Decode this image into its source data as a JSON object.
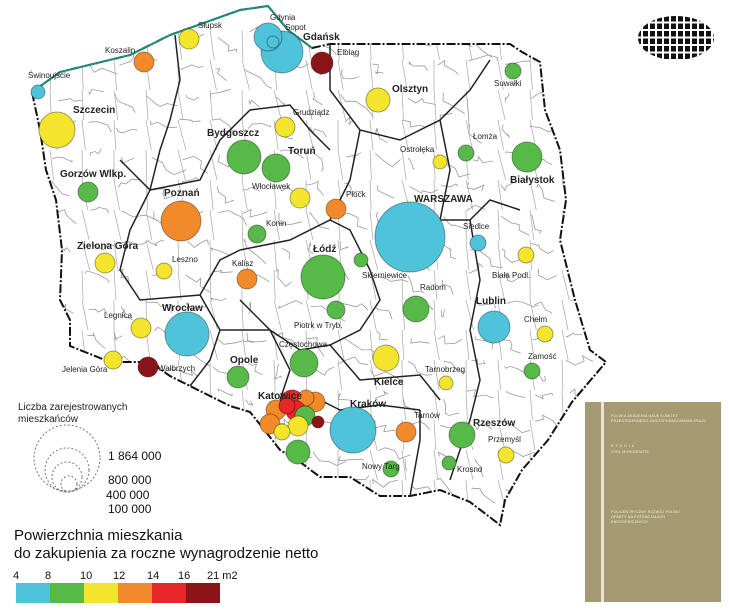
{
  "colors": {
    "bin_4_8": "#4fc3d9",
    "bin_8_10": "#56b948",
    "bin_10_12": "#f2e52c",
    "bin_12_14": "#f08a2a",
    "bin_14_16": "#e8262a",
    "bin_16_21": "#8b1418"
  },
  "cities": [
    {
      "name": "Gdynia",
      "bin": "bin_4_8"
    },
    {
      "name": "Sopot",
      "bin": "bin_4_8"
    },
    {
      "name": "Gdańsk",
      "bin": "bin_4_8"
    },
    {
      "name": "Elbląg",
      "bin": "bin_16_21"
    },
    {
      "name": "Słupsk",
      "bin": "bin_10_12"
    },
    {
      "name": "Koszalin",
      "bin": "bin_12_14"
    },
    {
      "name": "Świnoujście",
      "bin": "bin_4_8"
    },
    {
      "name": "Szczecin",
      "bin": "bin_10_12"
    },
    {
      "name": "Grudziądz",
      "bin": "bin_10_12"
    },
    {
      "name": "Bydgoszcz",
      "bin": "bin_8_10"
    },
    {
      "name": "Toruń",
      "bin": "bin_8_10"
    },
    {
      "name": "Włocławek",
      "bin": "bin_10_12"
    },
    {
      "name": "Płock",
      "bin": "bin_12_14"
    },
    {
      "name": "Gorzów Wlkp.",
      "bin": "bin_8_10"
    },
    {
      "name": "Poznań",
      "bin": "bin_12_14"
    },
    {
      "name": "Olsztyn",
      "bin": "bin_10_12"
    },
    {
      "name": "Suwałki",
      "bin": "bin_8_10"
    },
    {
      "name": "Łomża",
      "bin": "bin_8_10"
    },
    {
      "name": "Ostrołęka",
      "bin": "bin_10_12"
    },
    {
      "name": "Białystok",
      "bin": "bin_8_10"
    },
    {
      "name": "WARSZAWA",
      "bin": "bin_4_8"
    },
    {
      "name": "Siedlce",
      "bin": "bin_4_8"
    },
    {
      "name": "Biała Podl.",
      "bin": "bin_10_12"
    },
    {
      "name": "Konin",
      "bin": "bin_8_10"
    },
    {
      "name": "Łódź",
      "bin": "bin_8_10"
    },
    {
      "name": "Skierniewice",
      "bin": "bin_8_10"
    },
    {
      "name": "Leszno",
      "bin": "bin_10_12"
    },
    {
      "name": "Kalisz",
      "bin": "bin_12_14"
    },
    {
      "name": "Zielona Góra",
      "bin": "bin_10_12"
    },
    {
      "name": "Radom",
      "bin": "bin_8_10"
    },
    {
      "name": "Lublin",
      "bin": "bin_4_8"
    },
    {
      "name": "Chełm",
      "bin": "bin_10_12"
    },
    {
      "name": "Zamość",
      "bin": "bin_8_10"
    },
    {
      "name": "Legnica",
      "bin": "bin_10_12"
    },
    {
      "name": "Wrocław",
      "bin": "bin_4_8"
    },
    {
      "name": "Piotrk w Tryb.",
      "bin": "bin_8_10"
    },
    {
      "name": "Jelenia Góra",
      "bin": "bin_10_12"
    },
    {
      "name": "Wałbrzych",
      "bin": "bin_16_21"
    },
    {
      "name": "Opole",
      "bin": "bin_8_10"
    },
    {
      "name": "Częstochowa",
      "bin": "bin_8_10"
    },
    {
      "name": "Kielce",
      "bin": "bin_10_12"
    },
    {
      "name": "Tarnobrzeg",
      "bin": "bin_10_12"
    },
    {
      "name": "Katowice",
      "bin": "bin_14_16"
    },
    {
      "name": "Kraków",
      "bin": "bin_4_8"
    },
    {
      "name": "Tarnów",
      "bin": "bin_12_14"
    },
    {
      "name": "Rzeszów",
      "bin": "bin_8_10"
    },
    {
      "name": "Przemyśl",
      "bin": "bin_10_12"
    },
    {
      "name": "Krosno",
      "bin": "bin_8_10"
    },
    {
      "name": "Nowy Targ",
      "bin": "bin_8_10"
    }
  ],
  "legend": {
    "population_title": "Liczba zarejestrowanych mieszkańców",
    "population_values": [
      "1 864 000",
      "800 000",
      "400 000",
      "100 000"
    ],
    "area_title_line1": "Powierzchnia mieszkania",
    "area_title_line2": "do zakupienia za roczne wynagrodzenie netto",
    "scale_ticks": [
      "4",
      "8",
      "10",
      "12",
      "14",
      "16",
      "21 m2"
    ],
    "scale_bins": [
      "bin_4_8",
      "bin_8_10",
      "bin_10_12",
      "bin_12_14",
      "bin_14_16",
      "bin_16_21"
    ]
  },
  "book_cover": {
    "publisher": "POLSKA AKADEMIA NAUK KOMITET PRZESTRZENNEGO ZAGOSPODAROWANIA KRAJU",
    "series": "STUDIA",
    "series_sub": "CYKL MONOGRAFIE",
    "title": "POLICENTRYCZNY ROZWÓJ POLSKI OPARTY NA POTENCJAŁACH ENDOGENICZNYCH"
  }
}
